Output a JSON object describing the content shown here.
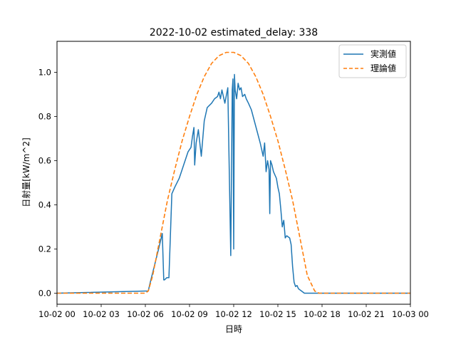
{
  "chart_data": {
    "type": "line",
    "title": "2022-10-02 estimated_delay: 338",
    "xlabel": "日時",
    "ylabel": "日射量[kW/m^2]",
    "x_range_hours": [
      0,
      24
    ],
    "ylim": [
      -0.05,
      1.14
    ],
    "x_tick_values": [
      0,
      3,
      6,
      9,
      12,
      15,
      18,
      21,
      24
    ],
    "x_tick_labels": [
      "10-02 00",
      "10-02 03",
      "10-02 06",
      "10-02 09",
      "10-02 12",
      "10-02 15",
      "10-02 18",
      "10-02 21",
      "10-03 00"
    ],
    "y_ticks": [
      0.0,
      0.2,
      0.4,
      0.6,
      0.8,
      1.0
    ],
    "grid": false,
    "legend_position": "top-right",
    "series": [
      {
        "name": "実測値",
        "color": "#1f77b4",
        "style": "solid",
        "x": [
          0,
          6.2,
          6.3,
          6.6,
          6.9,
          7.15,
          7.25,
          7.3,
          7.45,
          7.6,
          7.8,
          8.0,
          8.3,
          8.6,
          8.9,
          9.1,
          9.2,
          9.3,
          9.35,
          9.45,
          9.6,
          9.8,
          10.0,
          10.2,
          10.5,
          10.7,
          10.9,
          11.0,
          11.1,
          11.2,
          11.4,
          11.6,
          11.8,
          11.9,
          11.95,
          12.0,
          12.05,
          12.1,
          12.2,
          12.3,
          12.4,
          12.5,
          12.6,
          12.75,
          12.85,
          13.0,
          13.2,
          13.4,
          13.6,
          13.8,
          14.0,
          14.1,
          14.2,
          14.3,
          14.4,
          14.45,
          14.5,
          14.6,
          14.7,
          14.9,
          15.0,
          15.1,
          15.2,
          15.3,
          15.4,
          15.5,
          15.6,
          15.8,
          15.9,
          16.0,
          16.1,
          16.2,
          16.3,
          16.4,
          16.6,
          16.8,
          17.0,
          17.2,
          17.4,
          17.6,
          17.8,
          17.9,
          18.0,
          24
        ],
        "y": [
          0.0,
          0.01,
          0.04,
          0.12,
          0.2,
          0.27,
          0.06,
          0.06,
          0.07,
          0.07,
          0.45,
          0.48,
          0.52,
          0.58,
          0.64,
          0.66,
          0.71,
          0.75,
          0.58,
          0.68,
          0.74,
          0.62,
          0.78,
          0.84,
          0.86,
          0.88,
          0.89,
          0.91,
          0.88,
          0.92,
          0.86,
          0.93,
          0.17,
          0.92,
          0.97,
          0.2,
          0.99,
          0.92,
          0.88,
          0.95,
          0.92,
          0.93,
          0.89,
          0.9,
          0.88,
          0.86,
          0.83,
          0.78,
          0.73,
          0.68,
          0.62,
          0.68,
          0.55,
          0.6,
          0.56,
          0.36,
          0.6,
          0.58,
          0.55,
          0.52,
          0.48,
          0.45,
          0.38,
          0.3,
          0.33,
          0.25,
          0.26,
          0.25,
          0.22,
          0.12,
          0.05,
          0.03,
          0.035,
          0.02,
          0.01,
          0.0,
          0.0,
          0.0,
          0.0,
          0.0,
          0.0,
          0.0,
          0.0,
          0.0
        ]
      },
      {
        "name": "理論値",
        "color": "#ff7f0e",
        "style": "dashed",
        "x": [
          0,
          6.0,
          6.2,
          6.5,
          7.0,
          7.5,
          8.0,
          8.5,
          9.0,
          9.5,
          10.0,
          10.5,
          11.0,
          11.5,
          12.0,
          12.5,
          13.0,
          13.5,
          14.0,
          14.5,
          15.0,
          15.5,
          16.0,
          16.5,
          17.0,
          17.5,
          17.8,
          18.0,
          24
        ],
        "y": [
          0.0,
          0.0,
          0.01,
          0.08,
          0.25,
          0.42,
          0.56,
          0.69,
          0.8,
          0.9,
          0.98,
          1.04,
          1.075,
          1.09,
          1.09,
          1.075,
          1.04,
          0.98,
          0.9,
          0.8,
          0.69,
          0.56,
          0.42,
          0.25,
          0.08,
          0.01,
          0.0,
          0.0,
          0.0
        ]
      }
    ]
  }
}
